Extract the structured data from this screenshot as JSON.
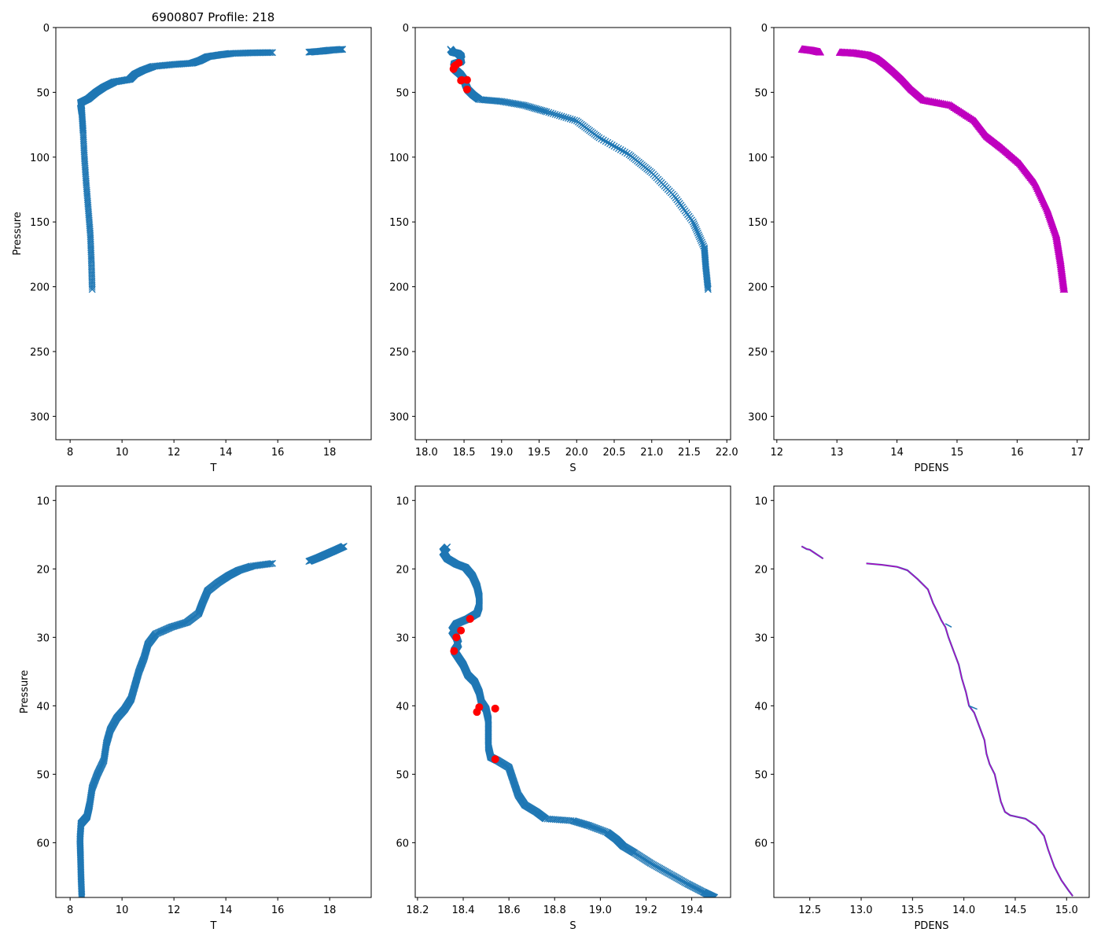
{
  "figure_title": "6900807 Profile: 218",
  "colors": {
    "series": "#1f77b4",
    "flag": "#ff0000",
    "density": "#bf00bf",
    "axis": "#000000"
  },
  "chart_data": [
    {
      "id": "temp_full",
      "type": "scatter",
      "title": "6900807 Profile: 218",
      "xlabel": "T",
      "ylabel": "Pressure",
      "marker": "x",
      "xlim": [
        7.45,
        19.6
      ],
      "ylim": [
        318,
        0
      ],
      "y_inverted": true,
      "xticks": [
        8,
        10,
        12,
        14,
        16,
        18
      ],
      "yticks": [
        0,
        50,
        100,
        150,
        200,
        250,
        300
      ],
      "profile": [
        [
          18.5,
          16.8
        ],
        [
          18.0,
          17.5
        ],
        [
          17.7,
          18.2
        ],
        [
          17.2,
          19.0
        ],
        [
          15.8,
          19.3
        ],
        [
          15.0,
          19.5
        ],
        [
          14.2,
          20.0
        ],
        [
          13.8,
          21.0
        ],
        [
          13.3,
          22.5
        ],
        [
          13.0,
          25.5
        ],
        [
          12.7,
          27.5
        ],
        [
          12.0,
          28.5
        ],
        [
          11.2,
          30.0
        ],
        [
          10.8,
          33.0
        ],
        [
          10.5,
          36.0
        ],
        [
          10.3,
          40.0
        ],
        [
          9.7,
          42.0
        ],
        [
          9.3,
          46.0
        ],
        [
          9.0,
          50.0
        ],
        [
          8.7,
          55.0
        ],
        [
          8.4,
          58.0
        ],
        [
          8.45,
          65.0
        ],
        [
          8.5,
          80.0
        ],
        [
          8.55,
          100.0
        ],
        [
          8.62,
          120.0
        ],
        [
          8.7,
          140.0
        ],
        [
          8.78,
          160.0
        ],
        [
          8.82,
          180.0
        ],
        [
          8.85,
          202.0
        ]
      ],
      "gaps": [
        [
          17.2,
          15.8
        ]
      ]
    },
    {
      "id": "sal_full",
      "type": "scatter",
      "title": "",
      "xlabel": "S",
      "ylabel": "",
      "marker": "x",
      "xlim": [
        17.85,
        22.05
      ],
      "ylim": [
        318,
        0
      ],
      "y_inverted": true,
      "xticks": [
        18.0,
        18.5,
        19.0,
        19.5,
        20.0,
        20.5,
        21.0,
        21.5,
        22.0
      ],
      "xticklabels": [
        "18.0",
        "18.5",
        "19.0",
        "19.5",
        "20.0",
        "20.5",
        "21.0",
        "21.5",
        "22.0"
      ],
      "yticks": [
        0,
        50,
        100,
        150,
        200,
        250,
        300
      ],
      "profile": [
        [
          18.32,
          16.8
        ],
        [
          18.35,
          19.0
        ],
        [
          18.42,
          20.0
        ],
        [
          18.46,
          22.0
        ],
        [
          18.47,
          25.0
        ],
        [
          18.45,
          26.5
        ],
        [
          18.37,
          28.0
        ],
        [
          18.36,
          31.0
        ],
        [
          18.39,
          33.0
        ],
        [
          18.45,
          36.0
        ],
        [
          18.5,
          40.0
        ],
        [
          18.52,
          44.0
        ],
        [
          18.55,
          48.0
        ],
        [
          18.62,
          52.0
        ],
        [
          18.7,
          55.5
        ],
        [
          19.0,
          57.0
        ],
        [
          19.3,
          60.0
        ],
        [
          19.6,
          65.0
        ],
        [
          20.0,
          72.0
        ],
        [
          20.3,
          85.0
        ],
        [
          20.7,
          98.0
        ],
        [
          21.0,
          112.0
        ],
        [
          21.3,
          130.0
        ],
        [
          21.55,
          150.0
        ],
        [
          21.7,
          170.0
        ],
        [
          21.72,
          185.0
        ],
        [
          21.75,
          202.0
        ]
      ],
      "flagged": [
        [
          18.43,
          27.3
        ],
        [
          18.39,
          29.0
        ],
        [
          18.37,
          30.0
        ],
        [
          18.36,
          32.0
        ],
        [
          18.47,
          40.5
        ],
        [
          18.54,
          40.4
        ],
        [
          18.46,
          40.9
        ],
        [
          18.54,
          47.8
        ]
      ]
    },
    {
      "id": "pdens_full",
      "type": "scatter",
      "title": "",
      "xlabel": "PDENS",
      "ylabel": "",
      "marker": "triangle",
      "xlim": [
        11.95,
        17.2
      ],
      "ylim": [
        318,
        0
      ],
      "y_inverted": true,
      "xticks": [
        12,
        13,
        14,
        15,
        16,
        17
      ],
      "yticks": [
        0,
        50,
        100,
        150,
        200,
        250,
        300
      ],
      "profile": [
        [
          12.42,
          16.8
        ],
        [
          12.6,
          17.8
        ],
        [
          12.72,
          19.0
        ],
        [
          13.05,
          19.2
        ],
        [
          13.3,
          19.8
        ],
        [
          13.55,
          21.5
        ],
        [
          13.7,
          24.5
        ],
        [
          13.8,
          28.0
        ],
        [
          13.95,
          34.0
        ],
        [
          14.1,
          40.5
        ],
        [
          14.25,
          48.0
        ],
        [
          14.45,
          56.0
        ],
        [
          14.9,
          60.0
        ],
        [
          15.3,
          72.0
        ],
        [
          15.5,
          84.0
        ],
        [
          15.75,
          93.0
        ],
        [
          16.05,
          105.0
        ],
        [
          16.3,
          120.0
        ],
        [
          16.5,
          140.0
        ],
        [
          16.65,
          160.0
        ],
        [
          16.72,
          180.0
        ],
        [
          16.78,
          202.0
        ]
      ],
      "gaps": [
        [
          12.72,
          13.05
        ]
      ]
    },
    {
      "id": "temp_zoom",
      "type": "scatter",
      "title": "",
      "xlabel": "T",
      "ylabel": "Pressure",
      "marker": "x",
      "xlim": [
        7.45,
        19.6
      ],
      "ylim": [
        68,
        7.9
      ],
      "y_inverted": true,
      "xticks": [
        8,
        10,
        12,
        14,
        16,
        18
      ],
      "yticks": [
        10,
        20,
        30,
        40,
        50,
        60
      ],
      "profile": [
        [
          18.55,
          16.7
        ],
        [
          18.2,
          17.3
        ],
        [
          17.9,
          17.8
        ],
        [
          17.6,
          18.3
        ],
        [
          17.2,
          18.9
        ],
        [
          15.8,
          19.2
        ],
        [
          15.0,
          19.6
        ],
        [
          14.5,
          20.2
        ],
        [
          14.1,
          21.0
        ],
        [
          13.7,
          22.0
        ],
        [
          13.3,
          23.2
        ],
        [
          13.1,
          25.0
        ],
        [
          12.95,
          26.5
        ],
        [
          12.5,
          27.8
        ],
        [
          11.9,
          28.5
        ],
        [
          11.3,
          29.5
        ],
        [
          11.0,
          31.0
        ],
        [
          10.85,
          33.0
        ],
        [
          10.65,
          35.0
        ],
        [
          10.5,
          37.0
        ],
        [
          10.35,
          39.0
        ],
        [
          10.1,
          40.5
        ],
        [
          9.8,
          41.8
        ],
        [
          9.55,
          43.5
        ],
        [
          9.4,
          45.5
        ],
        [
          9.3,
          48.0
        ],
        [
          9.05,
          50.0
        ],
        [
          8.85,
          52.0
        ],
        [
          8.75,
          54.5
        ],
        [
          8.65,
          56.2
        ],
        [
          8.42,
          57.2
        ],
        [
          8.38,
          59.5
        ],
        [
          8.4,
          62.0
        ],
        [
          8.42,
          65.0
        ],
        [
          8.45,
          68.0
        ]
      ],
      "gaps": [
        [
          17.2,
          15.8
        ]
      ]
    },
    {
      "id": "sal_zoom",
      "type": "scatter",
      "title": "",
      "xlabel": "S",
      "ylabel": "",
      "marker": "x",
      "xlim": [
        18.19,
        19.57
      ],
      "ylim": [
        68,
        7.9
      ],
      "y_inverted": true,
      "xticks": [
        18.2,
        18.4,
        18.6,
        18.8,
        19.0,
        19.2,
        19.4
      ],
      "xticklabels": [
        "18.2",
        "18.4",
        "18.6",
        "18.8",
        "19.0",
        "19.2",
        "19.4"
      ],
      "yticks": [
        10,
        20,
        30,
        40,
        50,
        60
      ],
      "profile": [
        [
          18.33,
          16.8
        ],
        [
          18.31,
          17.5
        ],
        [
          18.33,
          18.5
        ],
        [
          18.37,
          19.3
        ],
        [
          18.41,
          19.8
        ],
        [
          18.44,
          21.0
        ],
        [
          18.46,
          22.5
        ],
        [
          18.47,
          24.0
        ],
        [
          18.47,
          25.5
        ],
        [
          18.46,
          26.5
        ],
        [
          18.42,
          27.3
        ],
        [
          18.37,
          28.0
        ],
        [
          18.35,
          29.0
        ],
        [
          18.37,
          30.0
        ],
        [
          18.38,
          31.0
        ],
        [
          18.36,
          32.0
        ],
        [
          18.38,
          33.0
        ],
        [
          18.4,
          34.0
        ],
        [
          18.42,
          35.5
        ],
        [
          18.45,
          36.5
        ],
        [
          18.47,
          38.0
        ],
        [
          18.48,
          39.5
        ],
        [
          18.5,
          40.5
        ],
        [
          18.51,
          42.0
        ],
        [
          18.51,
          44.0
        ],
        [
          18.51,
          46.0
        ],
        [
          18.52,
          47.5
        ],
        [
          18.55,
          48.0
        ],
        [
          18.6,
          49.0
        ],
        [
          18.62,
          51.0
        ],
        [
          18.64,
          53.0
        ],
        [
          18.67,
          54.5
        ],
        [
          18.72,
          55.5
        ],
        [
          18.76,
          56.5
        ],
        [
          18.88,
          56.8
        ],
        [
          18.95,
          57.5
        ],
        [
          19.03,
          58.5
        ],
        [
          19.07,
          59.5
        ],
        [
          19.1,
          60.5
        ],
        [
          19.15,
          61.5
        ],
        [
          19.22,
          63.0
        ],
        [
          19.3,
          64.5
        ],
        [
          19.38,
          66.0
        ],
        [
          19.45,
          67.2
        ],
        [
          19.5,
          68.0
        ]
      ],
      "flagged": [
        [
          18.43,
          27.3
        ],
        [
          18.39,
          29.0
        ],
        [
          18.37,
          30.0
        ],
        [
          18.36,
          32.0
        ],
        [
          18.47,
          40.2
        ],
        [
          18.54,
          40.4
        ],
        [
          18.46,
          40.9
        ],
        [
          18.54,
          47.8
        ]
      ]
    },
    {
      "id": "pdens_zoom",
      "type": "line",
      "title": "",
      "xlabel": "PDENS",
      "ylabel": "",
      "marker": "none",
      "xlim": [
        12.15,
        15.22
      ],
      "ylim": [
        68,
        7.9
      ],
      "y_inverted": true,
      "xticks": [
        12.5,
        13.0,
        13.5,
        14.0,
        14.5,
        15.0
      ],
      "xticklabels": [
        "12.5",
        "13.0",
        "13.5",
        "14.0",
        "14.5",
        "15.0"
      ],
      "yticks": [
        10,
        20,
        30,
        40,
        50,
        60
      ],
      "segments": [
        [
          [
            12.42,
            16.7
          ],
          [
            12.47,
            17.1
          ],
          [
            12.5,
            17.2
          ],
          [
            12.52,
            17.4
          ],
          [
            12.56,
            17.8
          ],
          [
            12.6,
            18.2
          ],
          [
            12.63,
            18.5
          ]
        ],
        [
          [
            13.05,
            19.2
          ],
          [
            13.2,
            19.4
          ],
          [
            13.35,
            19.7
          ],
          [
            13.45,
            20.2
          ],
          [
            13.55,
            21.5
          ],
          [
            13.65,
            23.0
          ],
          [
            13.7,
            25.0
          ],
          [
            13.75,
            26.5
          ],
          [
            13.78,
            27.5
          ],
          [
            13.82,
            28.5
          ],
          [
            13.85,
            30.0
          ],
          [
            13.9,
            32.0
          ],
          [
            13.95,
            34.0
          ],
          [
            13.98,
            36.0
          ],
          [
            14.02,
            38.0
          ],
          [
            14.05,
            40.0
          ],
          [
            14.1,
            41.0
          ],
          [
            14.15,
            43.0
          ],
          [
            14.2,
            45.0
          ],
          [
            14.22,
            47.0
          ],
          [
            14.25,
            48.5
          ],
          [
            14.3,
            50.0
          ],
          [
            14.33,
            52.0
          ],
          [
            14.36,
            54.0
          ],
          [
            14.4,
            55.5
          ],
          [
            14.45,
            56.0
          ],
          [
            14.6,
            56.5
          ],
          [
            14.7,
            57.5
          ],
          [
            14.78,
            59.0
          ],
          [
            14.82,
            61.0
          ],
          [
            14.88,
            63.5
          ],
          [
            14.95,
            65.5
          ],
          [
            15.02,
            67.0
          ],
          [
            15.06,
            67.8
          ]
        ]
      ],
      "overlay_segments": [
        [
          [
            13.82,
            28.0
          ],
          [
            13.88,
            28.5
          ]
        ],
        [
          [
            14.05,
            40.0
          ],
          [
            14.13,
            40.5
          ]
        ]
      ]
    }
  ]
}
